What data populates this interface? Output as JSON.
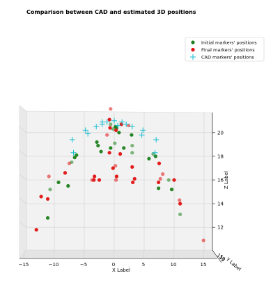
{
  "chart_data": {
    "type": "scatter",
    "projection": "3d",
    "title": "Comparison between CAD and estimated 3D positions",
    "xlabel": "X Label",
    "ylabel": "Y Label",
    "zlabel": "Z Label",
    "xlim": [
      -15,
      15
    ],
    "zlim": [
      11,
      21
    ],
    "x_ticks": [
      "−15",
      "−10",
      "−5",
      "0",
      "5",
      "10",
      "15"
    ],
    "z_ticks": [
      "12",
      "14",
      "16",
      "18",
      "20"
    ],
    "y_tick_labels_visible": [
      "15",
      "10",
      "5"
    ],
    "grid": true,
    "legend_position": "upper right",
    "series": [
      {
        "name": "Initial markers' positions",
        "color": "#1a7f1a",
        "marker": "circle",
        "points": [
          {
            "x": -0.6,
            "z": 20.7
          },
          {
            "x": 0.2,
            "z": 20.5
          },
          {
            "x": 0.4,
            "z": 20.4
          },
          {
            "x": -0.2,
            "z": 20.3
          },
          {
            "x": 0.8,
            "z": 20.0
          },
          {
            "x": 2.9,
            "z": 19.8
          },
          {
            "x": 0.1,
            "z": 19.1
          },
          {
            "x": -2.7,
            "z": 18.9
          },
          {
            "x": -2.9,
            "z": 19.2
          },
          {
            "x": 3.0,
            "z": 18.9
          },
          {
            "x": -0.6,
            "z": 18.7
          },
          {
            "x": 1.6,
            "z": 18.7
          },
          {
            "x": 3.0,
            "z": 18.3
          },
          {
            "x": -2.2,
            "z": 18.4
          },
          {
            "x": -6.3,
            "z": 18.1
          },
          {
            "x": 6.5,
            "z": 18.2
          },
          {
            "x": -6.6,
            "z": 17.9
          },
          {
            "x": 6.9,
            "z": 18.0
          },
          {
            "x": -7.1,
            "z": 17.5
          },
          {
            "x": 5.8,
            "z": 17.8
          },
          {
            "x": -9.3,
            "z": 15.8
          },
          {
            "x": 9.1,
            "z": 16.0
          },
          {
            "x": -7.7,
            "z": 15.5
          },
          {
            "x": 7.4,
            "z": 15.3
          },
          {
            "x": -10.7,
            "z": 15.2
          },
          {
            "x": 9.6,
            "z": 15.2
          },
          {
            "x": -11.1,
            "z": 12.8
          },
          {
            "x": 11.0,
            "z": 13.1
          }
        ]
      },
      {
        "name": "Final markers' positions",
        "color": "#e01010",
        "marker": "circle",
        "points": [
          {
            "x": -0.6,
            "z": 22.0
          },
          {
            "x": -0.8,
            "z": 21.1
          },
          {
            "x": 1.2,
            "z": 20.7
          },
          {
            "x": 2.4,
            "z": 20.6
          },
          {
            "x": 0.3,
            "z": 20.2
          },
          {
            "x": -0.7,
            "z": 20.4
          },
          {
            "x": -1.2,
            "z": 19.8
          },
          {
            "x": 1.0,
            "z": 18.2
          },
          {
            "x": -0.8,
            "z": 18.3
          },
          {
            "x": 0.2,
            "z": 17.2
          },
          {
            "x": -0.2,
            "z": 17.0
          },
          {
            "x": 3.0,
            "z": 17.1
          },
          {
            "x": -7.5,
            "z": 17.4
          },
          {
            "x": 7.5,
            "z": 17.4
          },
          {
            "x": -8.2,
            "z": 16.6
          },
          {
            "x": 8.1,
            "z": 16.5
          },
          {
            "x": -3.3,
            "z": 16.3
          },
          {
            "x": -3.4,
            "z": 16.0
          },
          {
            "x": -3.7,
            "z": 16.0
          },
          {
            "x": -2.5,
            "z": 16.0
          },
          {
            "x": 0.4,
            "z": 16.3
          },
          {
            "x": 0.3,
            "z": 16.0
          },
          {
            "x": 3.4,
            "z": 16.1
          },
          {
            "x": 3.1,
            "z": 15.8
          },
          {
            "x": 7.7,
            "z": 16.1
          },
          {
            "x": 7.4,
            "z": 15.8
          },
          {
            "x": 10.0,
            "z": 16.0
          },
          {
            "x": -10.9,
            "z": 16.3
          },
          {
            "x": -12.2,
            "z": 14.6
          },
          {
            "x": -11.1,
            "z": 14.4
          },
          {
            "x": 10.9,
            "z": 14.3
          },
          {
            "x": 11.0,
            "z": 14.0
          },
          {
            "x": -13.0,
            "z": 11.8
          },
          {
            "x": 14.9,
            "z": 10.9
          }
        ]
      },
      {
        "name": "CAD markers' positions",
        "color": "#17becf",
        "marker": "plus",
        "points": [
          {
            "x": 0.0,
            "z": 21.0
          },
          {
            "x": 1.3,
            "z": 20.9
          },
          {
            "x": -1.2,
            "z": 20.9
          },
          {
            "x": 2.0,
            "z": 20.7
          },
          {
            "x": -2.0,
            "z": 20.7
          },
          {
            "x": -3.0,
            "z": 20.5
          },
          {
            "x": 3.0,
            "z": 20.5
          },
          {
            "x": -4.8,
            "z": 20.2
          },
          {
            "x": 4.8,
            "z": 20.2
          },
          {
            "x": -4.4,
            "z": 19.9
          },
          {
            "x": 4.6,
            "z": 19.8
          },
          {
            "x": -7.0,
            "z": 19.4
          },
          {
            "x": 7.0,
            "z": 19.4
          },
          {
            "x": -2.0,
            "z": 20.9
          },
          {
            "x": 0.6,
            "z": 20.6
          },
          {
            "x": -6.8,
            "z": 18.3
          },
          {
            "x": 6.8,
            "z": 18.3
          }
        ]
      }
    ]
  }
}
